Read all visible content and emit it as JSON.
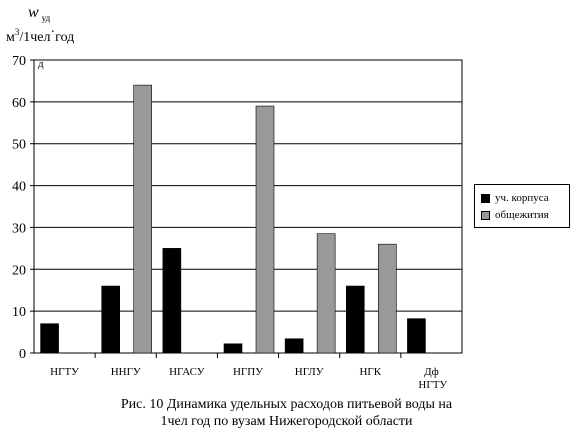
{
  "chart_data": {
    "type": "bar",
    "ylabel_symbol": "w",
    "ylabel_symbol_sub": "уд",
    "ylabel_unit_pre": "м",
    "ylabel_unit_sup": "3",
    "ylabel_unit_post": "/1чел",
    "ylabel_unit_dot": "·",
    "ylabel_unit_year": "год",
    "ylabel_tail": "д",
    "ylim": [
      0,
      70
    ],
    "yticks": [
      "0",
      "10",
      "20",
      "30",
      "40",
      "50",
      "60",
      "70"
    ],
    "grid": true,
    "legend_position": "right",
    "categories": [
      "НГТУ",
      "ННГУ",
      "НГАСУ",
      "НГПУ",
      "НГЛУ",
      "НГК",
      "Дф НГТУ"
    ],
    "series": [
      {
        "name": "уч. корпуса",
        "color": "#000000",
        "values": [
          7,
          16,
          25,
          2.2,
          3.4,
          16,
          8.2
        ]
      },
      {
        "name": "общежития",
        "color": "#999999",
        "values": [
          0,
          64,
          0,
          59,
          28.5,
          26,
          0
        ]
      }
    ]
  },
  "caption_line1": "Рис. 10 Динамика удельных расходов питьевой воды на",
  "caption_line2": "1чел год по вузам Нижегородской области"
}
